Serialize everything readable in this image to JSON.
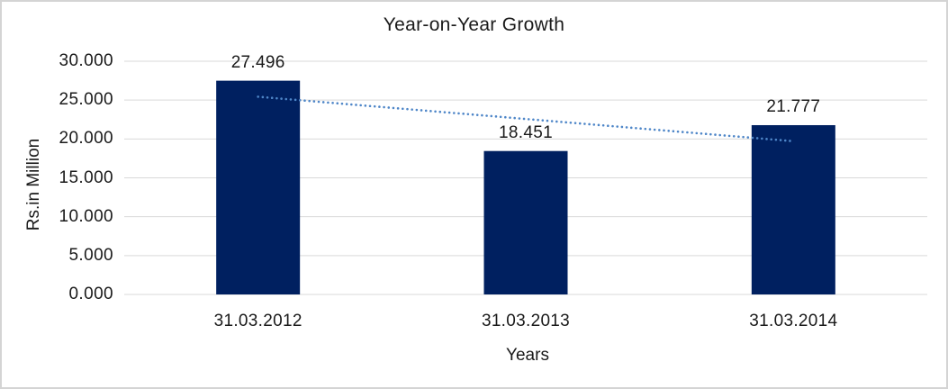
{
  "window": {
    "background": "#ffffff",
    "border_color": "#d4d4d4"
  },
  "chart_data": {
    "type": "bar",
    "title": "Year-on-Year Growth",
    "xlabel": "Years",
    "ylabel": "Rs.in Million",
    "categories": [
      "31.03.2012",
      "31.03.2013",
      "31.03.2014"
    ],
    "values": [
      27.496,
      18.451,
      21.777
    ],
    "data_labels": [
      "27.496",
      "18.451",
      "21.777"
    ],
    "ylim": [
      0,
      30
    ],
    "ytick_step": 5,
    "ytick_labels": [
      "0.000",
      "5.000",
      "10.000",
      "15.000",
      "20.000",
      "25.000",
      "30.000"
    ],
    "grid": true,
    "legend": "none",
    "trendline": {
      "type": "linear",
      "style": "dotted",
      "series": "values"
    },
    "colors": {
      "bar": "#002060",
      "trendline": "#4e86c8",
      "gridline": "#d9d9d9",
      "text": "#1a1a1a"
    }
  }
}
